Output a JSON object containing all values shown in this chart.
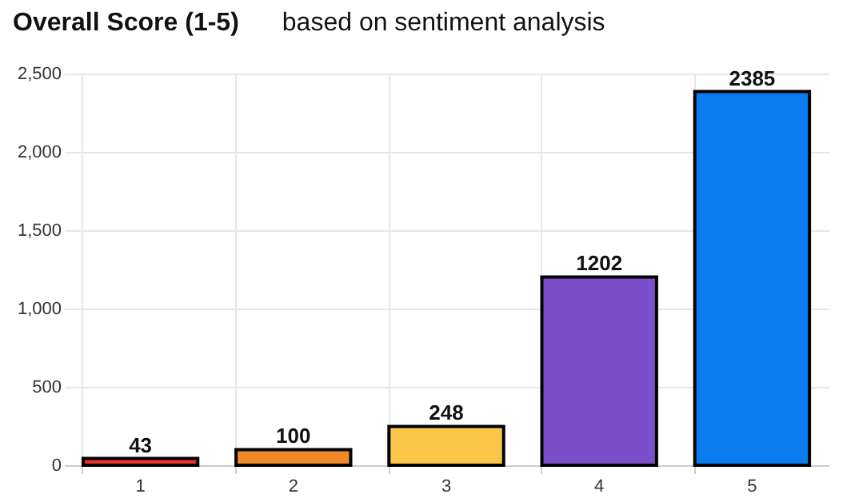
{
  "chart_data": {
    "type": "bar",
    "title": "Overall Score (1-5)",
    "subtitle": "based on sentiment analysis",
    "categories": [
      "1",
      "2",
      "3",
      "4",
      "5"
    ],
    "values": [
      43,
      100,
      248,
      1202,
      2385
    ],
    "colors": [
      "#e8312a",
      "#f0892a",
      "#fbc54a",
      "#7b4fc9",
      "#0a7cf0"
    ],
    "ylim": [
      0,
      2500
    ],
    "yticks": [
      0,
      {
        "value": 500,
        "label": "500"
      },
      {
        "value": 1000,
        "label": "1,000"
      },
      {
        "value": 1500,
        "label": "1,500"
      },
      {
        "value": 2000,
        "label": "2,000"
      },
      {
        "value": 2500,
        "label": "2,500"
      }
    ],
    "grid": true,
    "data_labels": true
  }
}
